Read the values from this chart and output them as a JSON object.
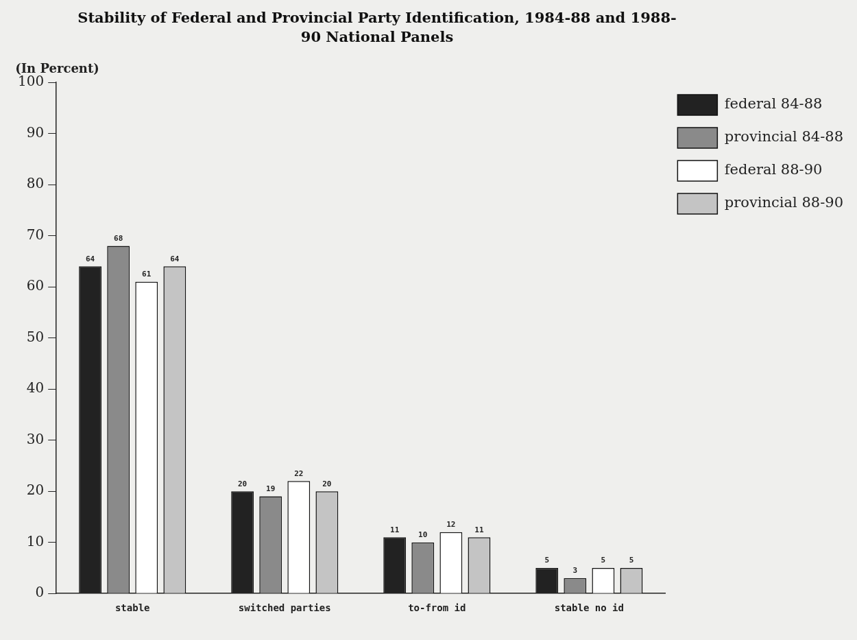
{
  "chart_data": {
    "type": "bar",
    "title": "Stability of Federal and Provincial Party Identification, 1984-88 and 1988-90 National Panels",
    "ylabel": "(In Percent)",
    "categories": [
      "stable",
      "switched parties",
      "to-from id",
      "stable no id"
    ],
    "series": [
      {
        "name": "federal 84-88",
        "color": "#222222",
        "values": [
          64,
          20,
          11,
          5
        ]
      },
      {
        "name": "provincial 84-88",
        "color": "#8a8a8a",
        "values": [
          68,
          19,
          10,
          3
        ]
      },
      {
        "name": "federal 88-90",
        "color": "#ffffff",
        "values": [
          61,
          22,
          12,
          5
        ]
      },
      {
        "name": "provincial 88-90",
        "color": "#c4c4c4",
        "values": [
          64,
          20,
          11,
          5
        ]
      }
    ],
    "ylim": [
      0,
      100
    ],
    "yticks": [
      0,
      10,
      20,
      30,
      40,
      50,
      60,
      70,
      80,
      90,
      100
    ],
    "grid": false,
    "legend": "top right",
    "data_labels": true
  }
}
